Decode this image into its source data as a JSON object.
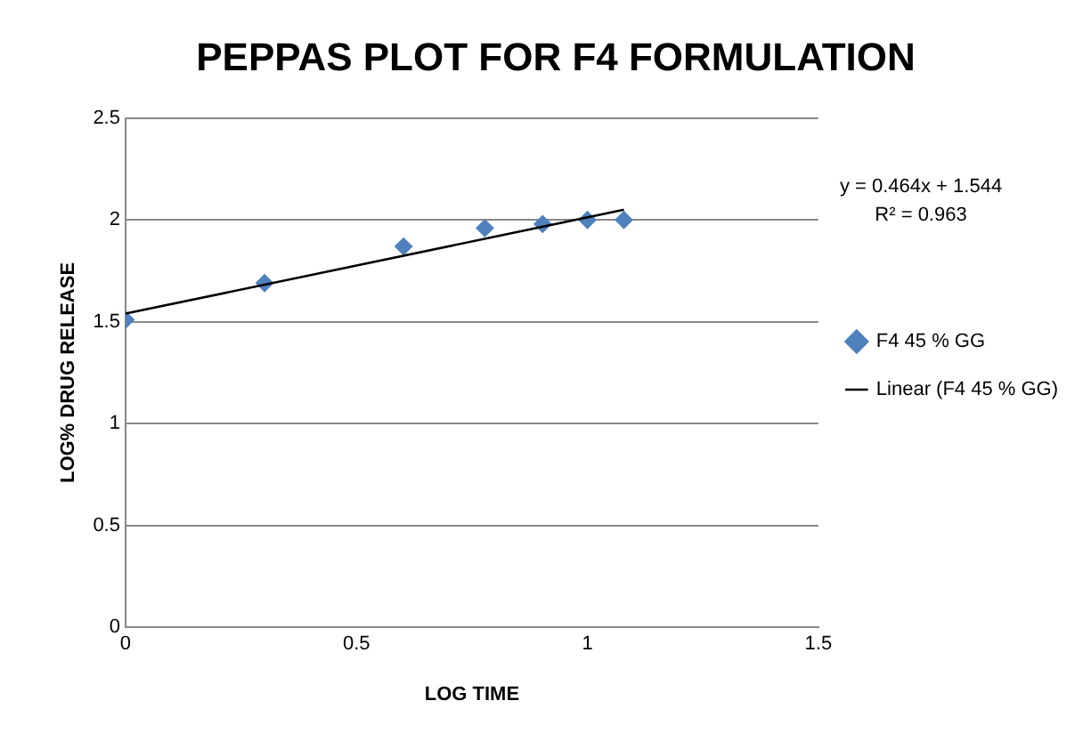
{
  "chart_data": {
    "type": "scatter",
    "title": "PEPPAS PLOT FOR F4 FORMULATION",
    "xlabel": "LOG TIME",
    "ylabel": "LOG% DRUG RELEASE",
    "series": [
      {
        "name": "F4 45 % GG",
        "color": "#4f81bd",
        "marker": "diamond",
        "x": [
          0,
          0.301,
          0.602,
          0.778,
          0.903,
          1.0,
          1.079
        ],
        "values": [
          1.51,
          1.69,
          1.87,
          1.96,
          1.98,
          2.0,
          2.0
        ]
      },
      {
        "name": "Linear (F4 45 % GG)",
        "color": "#000000",
        "type": "line",
        "marker": "none",
        "x": [
          0,
          1.079
        ],
        "values": [
          1.54,
          2.05
        ]
      }
    ],
    "xlim": [
      0,
      1.5
    ],
    "xticks": [
      0,
      0.5,
      1,
      1.5
    ],
    "ylim": [
      0,
      2.5
    ],
    "yticks": [
      0,
      0.5,
      1,
      1.5,
      2,
      2.5
    ],
    "grid": "y",
    "legend": "right",
    "annotations": [
      "y = 0.464x + 1.544",
      "R² = 0.963"
    ]
  }
}
